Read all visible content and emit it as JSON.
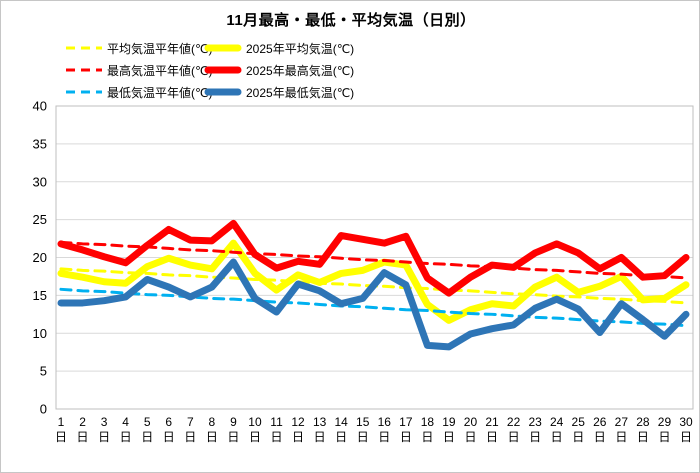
{
  "title": "11月最高・最低・平均気温（日別）",
  "legend": {
    "items": [
      {
        "label": "平均気温平年値(℃)",
        "color": "#FFFF00",
        "dashed": true
      },
      {
        "label": "2025年平均気温(℃)",
        "color": "#FFFF00",
        "dashed": false
      },
      {
        "label": "最高気温平年値(℃)",
        "color": "#FF0000",
        "dashed": true
      },
      {
        "label": "2025年最高気温(℃)",
        "color": "#FF0000",
        "dashed": false
      },
      {
        "label": "最低気温平年値(℃)",
        "color": "#00B0F0",
        "dashed": true
      },
      {
        "label": "2025年最低気温(℃)",
        "color": "#2E75B6",
        "dashed": false
      }
    ]
  },
  "chart_data": {
    "type": "line",
    "title": "11月最高・最低・平均気温（日別）",
    "xlabel": "",
    "ylabel": "",
    "ylim": [
      0,
      40
    ],
    "yticks": [
      0,
      5,
      10,
      15,
      20,
      25,
      30,
      35,
      40
    ],
    "grid": true,
    "legend_position": "top",
    "categories": [
      1,
      2,
      3,
      4,
      5,
      6,
      7,
      8,
      9,
      10,
      11,
      12,
      13,
      14,
      15,
      16,
      17,
      18,
      19,
      20,
      21,
      22,
      23,
      24,
      25,
      26,
      27,
      28,
      29,
      30
    ],
    "category_suffix": "日",
    "series": [
      {
        "name": "平均気温平年値(℃)",
        "color": "#FFFF00",
        "dashed": true,
        "values": [
          18.5,
          18.3,
          18.2,
          18.0,
          17.9,
          17.7,
          17.6,
          17.4,
          17.3,
          17.1,
          17.0,
          16.8,
          16.6,
          16.5,
          16.3,
          16.2,
          16.0,
          15.9,
          15.7,
          15.6,
          15.4,
          15.2,
          15.1,
          14.9,
          14.8,
          14.6,
          14.5,
          14.3,
          14.2,
          14.0
        ]
      },
      {
        "name": "2025年平均気温(℃)",
        "color": "#FFFF00",
        "dashed": false,
        "values": [
          17.9,
          17.4,
          16.8,
          16.6,
          18.8,
          19.9,
          19.0,
          18.5,
          21.9,
          17.9,
          15.7,
          17.7,
          16.7,
          17.9,
          18.3,
          19.4,
          19.0,
          13.8,
          11.7,
          13.1,
          13.9,
          13.6,
          16.1,
          17.4,
          15.4,
          16.2,
          17.5,
          14.4,
          14.6,
          16.4
        ]
      },
      {
        "name": "最高気温平年値(℃)",
        "color": "#FF0000",
        "dashed": true,
        "values": [
          22.0,
          21.8,
          21.7,
          21.5,
          21.4,
          21.2,
          21.0,
          20.9,
          20.7,
          20.5,
          20.4,
          20.2,
          20.1,
          19.9,
          19.7,
          19.6,
          19.4,
          19.2,
          19.1,
          18.9,
          18.8,
          18.6,
          18.4,
          18.3,
          18.1,
          17.9,
          17.8,
          17.6,
          17.5,
          17.3
        ]
      },
      {
        "name": "2025年最高気温(℃)",
        "color": "#FF0000",
        "dashed": false,
        "values": [
          21.8,
          21.0,
          20.1,
          19.3,
          21.6,
          23.7,
          22.3,
          22.2,
          24.5,
          20.4,
          18.6,
          19.5,
          19.1,
          22.9,
          22.4,
          21.9,
          22.8,
          17.3,
          15.3,
          17.4,
          19.0,
          18.7,
          20.6,
          21.8,
          20.6,
          18.5,
          20.0,
          17.4,
          17.6,
          20.0
        ]
      },
      {
        "name": "最低気温平年値(℃)",
        "color": "#00B0F0",
        "dashed": true,
        "values": [
          15.8,
          15.6,
          15.5,
          15.3,
          15.1,
          15.0,
          14.8,
          14.6,
          14.5,
          14.3,
          14.1,
          14.0,
          13.8,
          13.6,
          13.5,
          13.3,
          13.1,
          13.0,
          12.8,
          12.6,
          12.5,
          12.3,
          12.1,
          12.0,
          11.8,
          11.6,
          11.5,
          11.3,
          11.2,
          11.0
        ]
      },
      {
        "name": "2025年最低気温(℃)",
        "color": "#2E75B6",
        "dashed": false,
        "values": [
          14.0,
          14.0,
          14.3,
          14.8,
          17.1,
          16.1,
          14.8,
          16.1,
          19.4,
          14.6,
          12.8,
          16.5,
          15.6,
          13.9,
          14.6,
          18.0,
          16.4,
          8.4,
          8.2,
          9.9,
          10.6,
          11.1,
          13.3,
          14.5,
          13.2,
          10.1,
          13.9,
          11.8,
          9.6,
          12.5
        ]
      }
    ]
  },
  "colors": {
    "gridline": "#D9D9D9",
    "plot_border": "#BFBFBF",
    "text": "#000000"
  }
}
